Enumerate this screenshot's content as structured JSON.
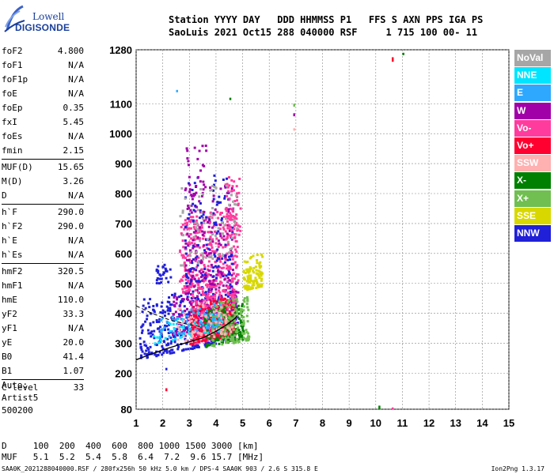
{
  "logo": {
    "line1": "Lowell",
    "line2": "DIGISONDE"
  },
  "header": {
    "row1": "Station YYYY DAY   DDD HHMMSS P1   FFS S AXN PPS IGA PS",
    "row2": "SaoLuis 2021 Oct15 288 040000 RSF     1 715 100 00- 11"
  },
  "params": [
    [
      {
        "name": "foF2",
        "value": "4.800"
      },
      {
        "name": "foF1",
        "value": "N/A"
      },
      {
        "name": "foF1p",
        "value": "N/A"
      },
      {
        "name": "foE",
        "value": "N/A"
      },
      {
        "name": "foEp",
        "value": "0.35"
      },
      {
        "name": "fxI",
        "value": "5.45"
      },
      {
        "name": "foEs",
        "value": "N/A"
      },
      {
        "name": "fmin",
        "value": "2.15"
      }
    ],
    [
      {
        "name": "MUF(D)",
        "value": "15.65"
      },
      {
        "name": "M(D)",
        "value": "3.26"
      },
      {
        "name": "D",
        "value": "N/A"
      }
    ],
    [
      {
        "name": "h`F",
        "value": "290.0"
      },
      {
        "name": "h`F2",
        "value": "290.0"
      },
      {
        "name": "h`E",
        "value": "N/A"
      },
      {
        "name": "h`Es",
        "value": "N/A"
      }
    ],
    [
      {
        "name": "hmF2",
        "value": "320.5"
      },
      {
        "name": "hmF1",
        "value": "N/A"
      },
      {
        "name": "hmE",
        "value": "110.0"
      },
      {
        "name": "yF2",
        "value": "33.3"
      },
      {
        "name": "yF1",
        "value": "N/A"
      },
      {
        "name": "yE",
        "value": "20.0"
      },
      {
        "name": "B0",
        "value": "41.4"
      },
      {
        "name": "B1",
        "value": "1.07"
      }
    ],
    [
      {
        "name": "C-level",
        "value": "33"
      }
    ]
  ],
  "auto": {
    "line1": "Auto:",
    "line2": "Artist5",
    "line3": "500200"
  },
  "muf_table": {
    "row1": "D     100  200  400  600  800 1000 1500 3000 [km]",
    "row2": "MUF   5.1  5.2  5.4  5.8  6.4  7.2  9.6 15.7 [MHz]"
  },
  "footer": {
    "left": "SAA0K_2021288040000.RSF / 280fx256h 50 kHz 5.0 km / DPS-4 SAA0K 903 / 2.6 S 315.8 E",
    "right": "Ion2Png 1.3.17"
  },
  "legend": [
    {
      "label": "NoVal",
      "color": "#a6a6a6"
    },
    {
      "label": "NNE",
      "color": "#00e5ff"
    },
    {
      "label": "E",
      "color": "#2ea8ff"
    },
    {
      "label": "W",
      "color": "#a100a8"
    },
    {
      "label": "Vo-",
      "color": "#ff3c9e"
    },
    {
      "label": "Vo+",
      "color": "#ff0030"
    },
    {
      "label": "SSW",
      "color": "#ffb0b0"
    },
    {
      "label": "X-",
      "color": "#008000"
    },
    {
      "label": "X+",
      "color": "#70bf50"
    },
    {
      "label": "SSE",
      "color": "#d8d800"
    },
    {
      "label": "NNW",
      "color": "#2020d8"
    }
  ],
  "chart_data": {
    "type": "scatter",
    "x_ticks": [
      1,
      2,
      3,
      4,
      5,
      6,
      7,
      8,
      9,
      10,
      11,
      12,
      13,
      14,
      15
    ],
    "y_ticks": [
      80,
      200,
      300,
      400,
      500,
      600,
      700,
      800,
      900,
      1000,
      1100,
      1280
    ],
    "xlim": [
      1,
      15
    ],
    "ylim": [
      80,
      1280
    ],
    "grid": true,
    "legend_position": "right",
    "trace_color": "#000",
    "profile_trace": [
      [
        1,
        245
      ],
      [
        1.5,
        262
      ],
      [
        2,
        278
      ],
      [
        2.5,
        292
      ],
      [
        3,
        305
      ],
      [
        3.5,
        318
      ],
      [
        4,
        340
      ],
      [
        4.4,
        362
      ],
      [
        4.7,
        382
      ],
      [
        4.8,
        392
      ]
    ],
    "dashed_trace": [
      [
        1,
        425
      ],
      [
        1.6,
        400
      ],
      [
        2.2,
        380
      ],
      [
        2.8,
        366
      ],
      [
        3.4,
        356
      ]
    ],
    "clusters": [
      {
        "type": "NNW",
        "x": [
          1.1,
          4.8
        ],
        "y": [
          250,
          450
        ],
        "n": 420
      },
      {
        "type": "W",
        "x": [
          2.3,
          4.8
        ],
        "y": [
          330,
          470
        ],
        "n": 200
      },
      {
        "type": "Vo-",
        "x": [
          3,
          4.7
        ],
        "y": [
          300,
          470
        ],
        "n": 300
      },
      {
        "type": "Vo+",
        "x": [
          3,
          4.7
        ],
        "y": [
          300,
          430
        ],
        "n": 200
      },
      {
        "type": "X-",
        "x": [
          3.5,
          5
        ],
        "y": [
          290,
          410
        ],
        "n": 150
      },
      {
        "type": "X+",
        "x": [
          3.8,
          5.2
        ],
        "y": [
          290,
          440
        ],
        "n": 170
      },
      {
        "type": "Vo-",
        "x": [
          2.6,
          4.8
        ],
        "y": [
          470,
          720
        ],
        "n": 350
      },
      {
        "type": "W",
        "x": [
          2.8,
          4.6
        ],
        "y": [
          480,
          820
        ],
        "n": 140
      },
      {
        "type": "NNW",
        "x": [
          2.8,
          4.6
        ],
        "y": [
          500,
          850
        ],
        "n": 120
      },
      {
        "type": "SSE",
        "x": [
          5,
          5.7
        ],
        "y": [
          480,
          590
        ],
        "n": 110
      },
      {
        "type": "Vo-",
        "x": [
          4.3,
          4.9
        ],
        "y": [
          650,
          860
        ],
        "n": 60
      },
      {
        "type": "NNE",
        "x": [
          1.6,
          4.2
        ],
        "y": [
          300,
          380
        ],
        "n": 60
      },
      {
        "type": "E",
        "x": [
          1.8,
          4.2
        ],
        "y": [
          320,
          400
        ],
        "n": 60
      },
      {
        "type": "NNW",
        "x": [
          1.7,
          2.3
        ],
        "y": [
          500,
          560
        ],
        "n": 30
      },
      {
        "type": "W",
        "x": [
          2.8,
          3.6
        ],
        "y": [
          790,
          960
        ],
        "n": 30
      },
      {
        "type": "NoVal",
        "x": [
          2.6,
          4.8
        ],
        "y": [
          560,
          820
        ],
        "n": 70
      },
      {
        "type": "SSW",
        "x": [
          2.5,
          4.6
        ],
        "y": [
          300,
          420
        ],
        "n": 80
      }
    ],
    "isolated": [
      {
        "type": "X-",
        "x": [
          10.1,
          10.1
        ],
        "y": [
          80,
          92
        ]
      },
      {
        "type": "Vo-",
        "x": [
          10.6,
          10.6
        ],
        "y": [
          80,
          86
        ]
      },
      {
        "type": "Vo+",
        "x": [
          10.6,
          10.6
        ],
        "y": [
          1240,
          1255
        ]
      },
      {
        "type": "X-",
        "x": [
          11,
          11
        ],
        "y": [
          1265,
          1270
        ]
      },
      {
        "type": "W",
        "x": [
          6.9,
          6.9
        ],
        "y": [
          1058,
          1068
        ]
      },
      {
        "type": "X+",
        "x": [
          6.9,
          6.9
        ],
        "y": [
          1090,
          1100
        ]
      },
      {
        "type": "SSW",
        "x": [
          6.9,
          6.9
        ],
        "y": [
          1010,
          1018
        ]
      },
      {
        "type": "E",
        "x": [
          2.5,
          2.5
        ],
        "y": [
          1140,
          1146
        ]
      },
      {
        "type": "X-",
        "x": [
          4.5,
          4.5
        ],
        "y": [
          1112,
          1120
        ]
      },
      {
        "type": "Vo+",
        "x": [
          2.1,
          2.1
        ],
        "y": [
          140,
          150
        ]
      },
      {
        "type": "NNW",
        "x": [
          2.1,
          2.1
        ],
        "y": [
          210,
          218
        ]
      }
    ]
  }
}
